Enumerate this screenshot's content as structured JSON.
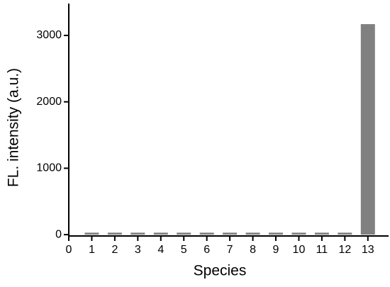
{
  "chart_data": {
    "type": "bar",
    "x_label": "Species",
    "y_label": "FL. intensity (a.u.)",
    "x": [
      1,
      2,
      3,
      4,
      5,
      6,
      7,
      8,
      9,
      10,
      11,
      12,
      13
    ],
    "values": [
      30,
      30,
      30,
      30,
      30,
      30,
      30,
      30,
      30,
      30,
      30,
      30,
      3170
    ],
    "color": "#808080",
    "xlim": [
      0,
      13.9
    ],
    "xticks": [
      0,
      1,
      2,
      3,
      4,
      5,
      6,
      7,
      8,
      9,
      10,
      11,
      12,
      13
    ],
    "ylim": [
      -20,
      3480
    ],
    "yticks": [
      0,
      1000,
      2000,
      3000
    ]
  }
}
